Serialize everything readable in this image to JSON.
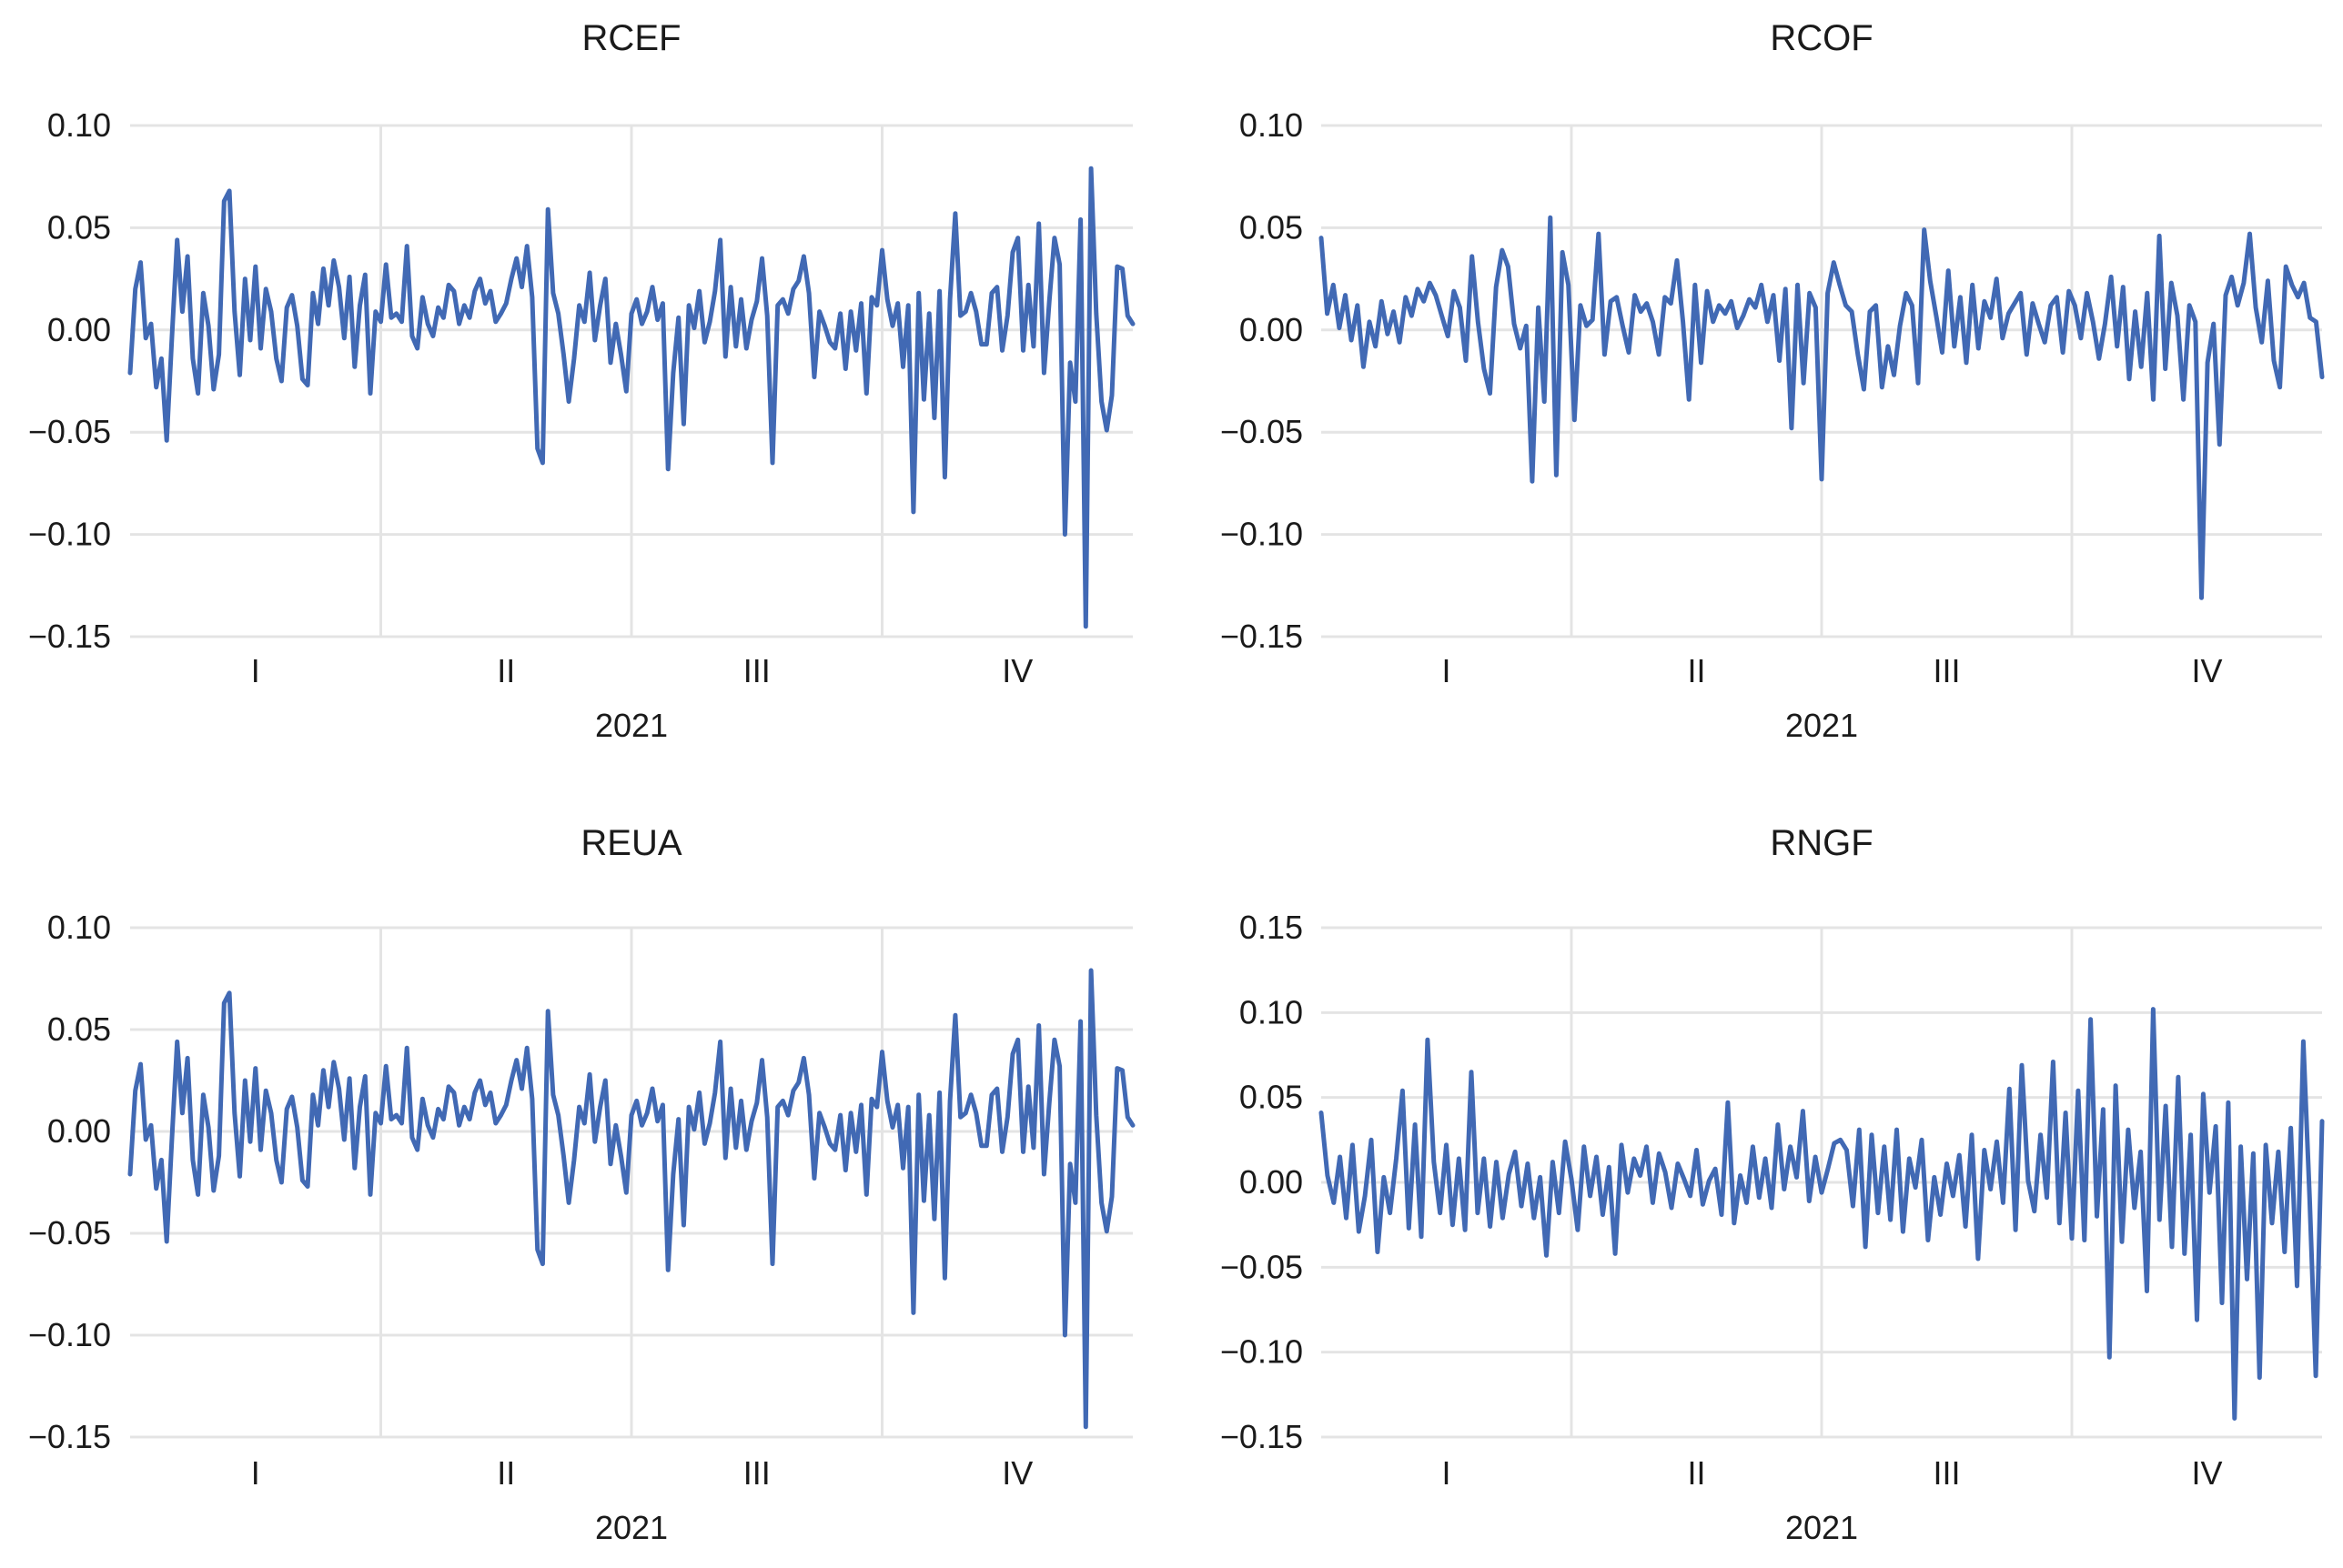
{
  "figure": {
    "background": "#ffffff",
    "line_color": "#4169b4"
  },
  "chart_data": [
    {
      "type": "line",
      "title": "RCEF",
      "xlabel": "2021",
      "quarters": [
        "I",
        "II",
        "III",
        "IV"
      ],
      "yticks": [
        "0.10",
        "0.05",
        "0.00",
        "−0.05",
        "−0.10",
        "−0.15"
      ],
      "ylim": [
        -0.15,
        0.1
      ],
      "series": [
        {
          "values": [
            -0.021,
            0.02,
            0.033,
            -0.004,
            0.003,
            -0.028,
            -0.014,
            -0.054,
            -0.004,
            0.044,
            0.009,
            0.036,
            -0.014,
            -0.031,
            0.018,
            0.002,
            -0.029,
            -0.012,
            0.063,
            0.068,
            0.009,
            -0.022,
            0.025,
            -0.005,
            0.031,
            -0.009,
            0.02,
            0.009,
            -0.014,
            -0.025,
            0.011,
            0.017,
            0.002,
            -0.024,
            -0.027,
            0.018,
            0.003,
            0.03,
            0.012,
            0.034,
            0.021,
            -0.004,
            0.026,
            -0.018,
            0.012,
            0.027,
            -0.031,
            0.009,
            0.004,
            0.032,
            0.006,
            0.008,
            0.004,
            0.041,
            -0.003,
            -0.009,
            0.016,
            0.003,
            -0.003,
            0.011,
            0.006,
            0.022,
            0.019,
            0.003,
            0.012,
            0.006,
            0.019,
            0.025,
            0.013,
            0.019,
            0.004,
            0.008,
            0.013,
            0.025,
            0.035,
            0.021,
            0.041,
            0.016,
            -0.058,
            -0.065,
            0.059,
            0.018,
            0.008,
            -0.012,
            -0.035,
            -0.014,
            0.012,
            0.004,
            0.028,
            -0.005,
            0.012,
            0.025,
            -0.016,
            0.003,
            -0.012,
            -0.03,
            0.008,
            0.015,
            0.003,
            0.009,
            0.021,
            0.005,
            0.013,
            -0.068,
            -0.021,
            0.006,
            -0.046,
            0.012,
            0.001,
            0.019,
            -0.006,
            0.004,
            0.019,
            0.044,
            -0.013,
            0.021,
            -0.008,
            0.015,
            -0.009,
            0.005,
            0.014,
            0.035,
            0.007,
            -0.065,
            0.012,
            0.015,
            0.008,
            0.02,
            0.024,
            0.036,
            0.018,
            -0.023,
            0.009,
            0.002,
            -0.006,
            -0.009,
            0.008,
            -0.019,
            0.009,
            -0.01,
            0.013,
            -0.031,
            0.016,
            0.012,
            0.039,
            0.015,
            0.002,
            0.013,
            -0.018,
            0.012,
            -0.089,
            0.018,
            -0.034,
            0.008,
            -0.043,
            0.019,
            -0.072,
            0.015,
            0.057,
            0.007,
            0.009,
            0.018,
            0.009,
            -0.007,
            -0.007,
            0.018,
            0.021,
            -0.01,
            0.007,
            0.038,
            0.045,
            -0.01,
            0.022,
            -0.008,
            0.052,
            -0.021,
            0.014,
            0.045,
            0.032,
            -0.1,
            -0.016,
            -0.035,
            0.054,
            -0.145,
            0.079,
            0.008,
            -0.035,
            -0.049,
            -0.032,
            0.031,
            0.03,
            0.007,
            0.003
          ]
        }
      ]
    },
    {
      "type": "line",
      "title": "RCOF",
      "xlabel": "2021",
      "quarters": [
        "I",
        "II",
        "III",
        "IV"
      ],
      "yticks": [
        "0.10",
        "0.05",
        "0.00",
        "−0.05",
        "−0.10",
        "−0.15"
      ],
      "ylim": [
        -0.15,
        0.1
      ],
      "series": [
        {
          "values": [
            0.045,
            0.008,
            0.022,
            0.001,
            0.017,
            -0.005,
            0.012,
            -0.018,
            0.004,
            -0.008,
            0.014,
            -0.002,
            0.009,
            -0.006,
            0.016,
            0.007,
            0.02,
            0.014,
            0.023,
            0.017,
            0.007,
            -0.003,
            0.019,
            0.011,
            -0.015,
            0.036,
            0.004,
            -0.019,
            -0.031,
            0.021,
            0.039,
            0.031,
            0.003,
            -0.009,
            0.002,
            -0.074,
            0.011,
            -0.035,
            0.055,
            -0.071,
            0.038,
            0.022,
            -0.044,
            0.012,
            0.002,
            0.005,
            0.047,
            -0.012,
            0.014,
            0.016,
            0.002,
            -0.011,
            0.017,
            0.009,
            0.013,
            0.004,
            -0.012,
            0.016,
            0.013,
            0.034,
            0.004,
            -0.034,
            0.022,
            -0.016,
            0.019,
            0.004,
            0.012,
            0.008,
            0.014,
            0.001,
            0.007,
            0.015,
            0.011,
            0.022,
            0.004,
            0.017,
            -0.015,
            0.02,
            -0.048,
            0.022,
            -0.026,
            0.018,
            0.011,
            -0.073,
            0.018,
            0.033,
            0.022,
            0.012,
            0.009,
            -0.012,
            -0.029,
            0.009,
            0.012,
            -0.028,
            -0.008,
            -0.022,
            0.002,
            0.018,
            0.012,
            -0.026,
            0.049,
            0.024,
            0.007,
            -0.011,
            0.029,
            -0.008,
            0.016,
            -0.016,
            0.022,
            -0.009,
            0.014,
            0.006,
            0.025,
            -0.004,
            0.008,
            0.013,
            0.018,
            -0.012,
            0.013,
            0.003,
            -0.006,
            0.012,
            0.016,
            -0.011,
            0.019,
            0.012,
            -0.004,
            0.018,
            0.004,
            -0.014,
            0.003,
            0.026,
            -0.008,
            0.021,
            -0.024,
            0.009,
            -0.018,
            0.018,
            -0.034,
            0.046,
            -0.019,
            0.023,
            0.007,
            -0.034,
            0.012,
            0.004,
            -0.131,
            -0.016,
            0.003,
            -0.056,
            0.017,
            0.026,
            0.012,
            0.023,
            0.047,
            0.011,
            -0.006,
            0.024,
            -0.015,
            -0.028,
            0.031,
            0.022,
            0.016,
            0.023,
            0.006,
            0.004,
            -0.023
          ]
        }
      ]
    },
    {
      "type": "line",
      "title": "REUA",
      "xlabel": "2021",
      "quarters": [
        "I",
        "II",
        "III",
        "IV"
      ],
      "yticks": [
        "0.10",
        "0.05",
        "0.00",
        "−0.05",
        "−0.10",
        "−0.15"
      ],
      "ylim": [
        -0.15,
        0.1
      ],
      "series": [
        {
          "values": [
            -0.021,
            0.02,
            0.033,
            -0.004,
            0.003,
            -0.028,
            -0.014,
            -0.054,
            -0.004,
            0.044,
            0.009,
            0.036,
            -0.014,
            -0.031,
            0.018,
            0.002,
            -0.029,
            -0.012,
            0.063,
            0.068,
            0.009,
            -0.022,
            0.025,
            -0.005,
            0.031,
            -0.009,
            0.02,
            0.009,
            -0.014,
            -0.025,
            0.011,
            0.017,
            0.002,
            -0.024,
            -0.027,
            0.018,
            0.003,
            0.03,
            0.012,
            0.034,
            0.021,
            -0.004,
            0.026,
            -0.018,
            0.012,
            0.027,
            -0.031,
            0.009,
            0.004,
            0.032,
            0.006,
            0.008,
            0.004,
            0.041,
            -0.003,
            -0.009,
            0.016,
            0.003,
            -0.003,
            0.011,
            0.006,
            0.022,
            0.019,
            0.003,
            0.012,
            0.006,
            0.019,
            0.025,
            0.013,
            0.019,
            0.004,
            0.008,
            0.013,
            0.025,
            0.035,
            0.021,
            0.041,
            0.016,
            -0.058,
            -0.065,
            0.059,
            0.018,
            0.008,
            -0.012,
            -0.035,
            -0.014,
            0.012,
            0.004,
            0.028,
            -0.005,
            0.012,
            0.025,
            -0.016,
            0.003,
            -0.012,
            -0.03,
            0.008,
            0.015,
            0.003,
            0.009,
            0.021,
            0.005,
            0.013,
            -0.068,
            -0.021,
            0.006,
            -0.046,
            0.012,
            0.001,
            0.019,
            -0.006,
            0.004,
            0.019,
            0.044,
            -0.013,
            0.021,
            -0.008,
            0.015,
            -0.009,
            0.005,
            0.014,
            0.035,
            0.007,
            -0.065,
            0.012,
            0.015,
            0.008,
            0.02,
            0.024,
            0.036,
            0.018,
            -0.023,
            0.009,
            0.002,
            -0.006,
            -0.009,
            0.008,
            -0.019,
            0.009,
            -0.01,
            0.013,
            -0.031,
            0.016,
            0.012,
            0.039,
            0.015,
            0.002,
            0.013,
            -0.018,
            0.012,
            -0.089,
            0.018,
            -0.034,
            0.008,
            -0.043,
            0.019,
            -0.072,
            0.015,
            0.057,
            0.007,
            0.009,
            0.018,
            0.009,
            -0.007,
            -0.007,
            0.018,
            0.021,
            -0.01,
            0.007,
            0.038,
            0.045,
            -0.01,
            0.022,
            -0.008,
            0.052,
            -0.021,
            0.014,
            0.045,
            0.032,
            -0.1,
            -0.016,
            -0.035,
            0.054,
            -0.145,
            0.079,
            0.008,
            -0.035,
            -0.049,
            -0.032,
            0.031,
            0.03,
            0.007,
            0.003
          ]
        }
      ]
    },
    {
      "type": "line",
      "title": "RNGF",
      "xlabel": "2021",
      "quarters": [
        "I",
        "II",
        "III",
        "IV"
      ],
      "yticks": [
        "0.15",
        "0.10",
        "0.05",
        "0.00",
        "−0.05",
        "−0.10",
        "−0.15"
      ],
      "ylim": [
        -0.15,
        0.15
      ],
      "series": [
        {
          "values": [
            0.041,
            0.004,
            -0.012,
            0.015,
            -0.021,
            0.022,
            -0.029,
            -0.008,
            0.025,
            -0.041,
            0.003,
            -0.018,
            0.014,
            0.054,
            -0.027,
            0.034,
            -0.032,
            0.084,
            0.012,
            -0.018,
            0.022,
            -0.025,
            0.014,
            -0.028,
            0.065,
            -0.018,
            0.014,
            -0.026,
            0.012,
            -0.021,
            0.005,
            0.018,
            -0.014,
            0.011,
            -0.021,
            0.003,
            -0.043,
            0.012,
            -0.018,
            0.024,
            0.002,
            -0.028,
            0.021,
            -0.008,
            0.015,
            -0.019,
            0.009,
            -0.042,
            0.022,
            -0.006,
            0.014,
            0.004,
            0.021,
            -0.012,
            0.017,
            0.006,
            -0.015,
            0.011,
            0.002,
            -0.008,
            0.019,
            -0.013,
            0.001,
            0.008,
            -0.019,
            0.047,
            -0.024,
            0.004,
            -0.012,
            0.021,
            -0.009,
            0.014,
            -0.015,
            0.034,
            -0.004,
            0.021,
            0.003,
            0.042,
            -0.011,
            0.015,
            -0.006,
            0.008,
            0.023,
            0.025,
            0.019,
            -0.014,
            0.031,
            -0.038,
            0.028,
            -0.018,
            0.021,
            -0.022,
            0.031,
            -0.029,
            0.014,
            -0.003,
            0.025,
            -0.034,
            0.003,
            -0.019,
            0.011,
            -0.008,
            0.016,
            -0.026,
            0.028,
            -0.045,
            0.019,
            -0.004,
            0.024,
            -0.012,
            0.055,
            -0.028,
            0.069,
            0.001,
            -0.017,
            0.028,
            -0.009,
            0.071,
            -0.024,
            0.041,
            -0.033,
            0.054,
            -0.034,
            0.096,
            -0.02,
            0.043,
            -0.103,
            0.057,
            -0.035,
            0.031,
            -0.015,
            0.018,
            -0.064,
            0.102,
            -0.022,
            0.045,
            -0.038,
            0.062,
            -0.042,
            0.028,
            -0.081,
            0.052,
            -0.006,
            0.033,
            -0.071,
            0.047,
            -0.139,
            0.021,
            -0.057,
            0.017,
            -0.115,
            0.022,
            -0.024,
            0.018,
            -0.041,
            0.032,
            -0.061,
            0.083,
            -0.009,
            -0.114,
            0.036
          ]
        }
      ]
    }
  ]
}
